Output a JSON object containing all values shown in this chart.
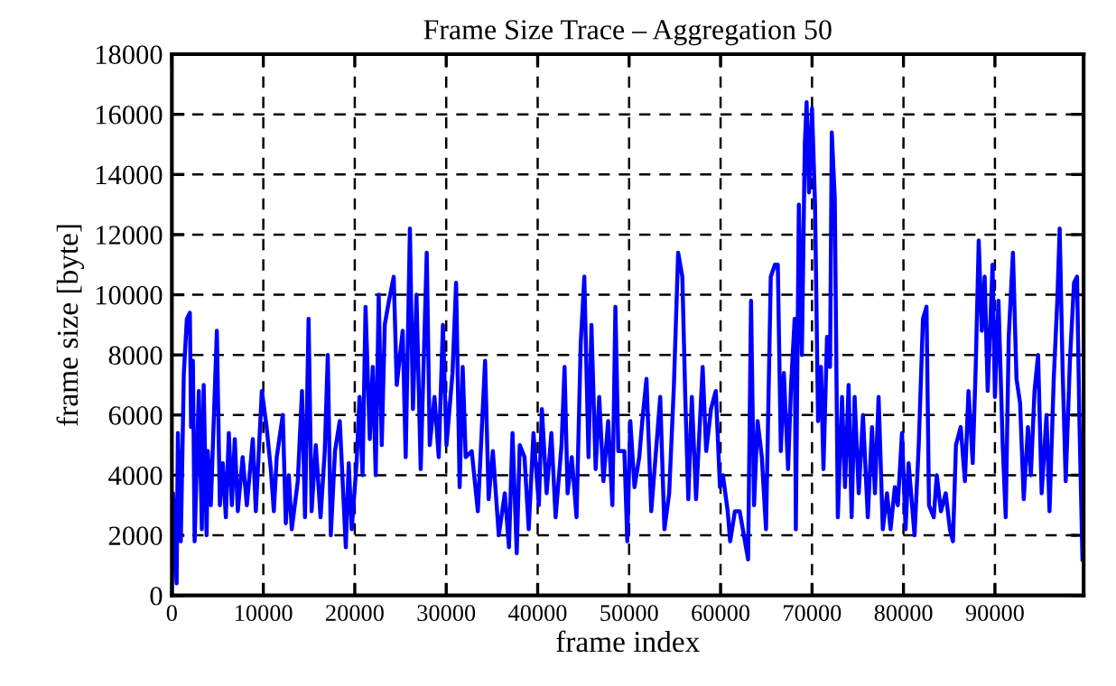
{
  "chart_data": {
    "type": "line",
    "title": "Frame Size Trace – Aggregation 50",
    "xlabel": "frame index",
    "ylabel": "frame size [byte]",
    "xlim": [
      0,
      99700
    ],
    "ylim": [
      0,
      18000
    ],
    "xticks": [
      0,
      10000,
      20000,
      30000,
      40000,
      50000,
      60000,
      70000,
      80000,
      90000
    ],
    "yticks": [
      0,
      2000,
      4000,
      6000,
      8000,
      10000,
      12000,
      14000,
      16000,
      18000
    ],
    "grid": true,
    "legend": false,
    "line_style": "solid",
    "marker": "none",
    "series": [
      {
        "color": "#0000ff",
        "x": [
          0,
          130,
          520,
          660,
          980,
          1310,
          1640,
          1970,
          2100,
          2300,
          2490,
          2950,
          3280,
          3480,
          3800,
          3930,
          4260,
          4920,
          5250,
          5570,
          5900,
          6230,
          6560,
          6880,
          7210,
          7740,
          8200,
          8850,
          9180,
          9840,
          10360,
          10820,
          11150,
          11470,
          12130,
          12460,
          12790,
          13110,
          13770,
          14230,
          14560,
          14950,
          15280,
          15740,
          16260,
          16720,
          17050,
          17380,
          17840,
          18360,
          19020,
          19340,
          19670,
          20200,
          20520,
          20850,
          21180,
          21640,
          21970,
          22290,
          22620,
          22950,
          23280,
          23740,
          24260,
          24590,
          25240,
          25570,
          26030,
          26360,
          26750,
          27210,
          27870,
          28200,
          28720,
          29180,
          29640,
          30030,
          30690,
          31080,
          31470,
          31800,
          32130,
          32790,
          33460,
          34250,
          34640,
          35100,
          35750,
          36410,
          36860,
          37250,
          37710,
          38040,
          38560,
          39020,
          39540,
          40130,
          40460,
          40980,
          41500,
          41960,
          42610,
          42940,
          43270,
          43730,
          44250,
          44710,
          45100,
          45560,
          45880,
          46340,
          46730,
          47190,
          47710,
          48170,
          48500,
          48820,
          49480,
          49800,
          50130,
          50590,
          51110,
          51440,
          51900,
          52420,
          52940,
          53400,
          53860,
          54380,
          54900,
          55360,
          55820,
          56140,
          56470,
          56860,
          57320,
          58040,
          58430,
          58950,
          59480,
          59930,
          60260,
          60780,
          61050,
          61570,
          62090,
          62550,
          63010,
          63330,
          63660,
          64050,
          64510,
          64970,
          65490,
          65950,
          66260,
          66590,
          66920,
          67380,
          67710,
          68100,
          68230,
          68560,
          68890,
          69210,
          69410,
          69670,
          70000,
          70330,
          70660,
          70980,
          71250,
          71640,
          71970,
          72160,
          72490,
          72820,
          73280,
          73610,
          74000,
          74330,
          74660,
          75110,
          75570,
          76100,
          76560,
          76880,
          77280,
          77740,
          78200,
          78590,
          79050,
          79380,
          79840,
          80230,
          80560,
          81210,
          81670,
          82130,
          82520,
          82790,
          83310,
          83640,
          84100,
          84620,
          85080,
          85410,
          85740,
          86260,
          86720,
          87110,
          87570,
          87900,
          88230,
          88560,
          88880,
          89210,
          89740,
          90000,
          90390,
          90850,
          91180,
          91510,
          91970,
          92360,
          92750,
          93150,
          93610,
          93930,
          94330,
          94720,
          95110,
          95640,
          95970,
          96430,
          96820,
          97080,
          97410,
          97740,
          98200,
          98650,
          98980,
          99240,
          99570
        ],
        "values": [
          0,
          3400,
          400,
          5400,
          1800,
          7400,
          9200,
          9400,
          5600,
          7800,
          1800,
          6800,
          2200,
          7000,
          2000,
          4800,
          3000,
          8800,
          3000,
          4400,
          2600,
          5400,
          3000,
          5200,
          2800,
          4600,
          3000,
          5200,
          2800,
          6800,
          5600,
          4200,
          2800,
          4600,
          6000,
          2400,
          4000,
          2200,
          3800,
          6800,
          2600,
          9200,
          2800,
          5000,
          2600,
          4800,
          8000,
          2000,
          4800,
          5800,
          1600,
          4400,
          2200,
          4400,
          6600,
          4000,
          9600,
          5200,
          7600,
          4000,
          10000,
          5000,
          9000,
          9800,
          10600,
          7000,
          8800,
          4600,
          12200,
          6200,
          10000,
          4200,
          11400,
          5000,
          6600,
          4600,
          9000,
          5000,
          7400,
          10400,
          3600,
          7600,
          4600,
          4800,
          2800,
          7800,
          3200,
          4800,
          2000,
          3400,
          1600,
          5400,
          1400,
          5000,
          4600,
          2200,
          5400,
          3000,
          6200,
          3400,
          5400,
          2600,
          5000,
          7600,
          3400,
          4600,
          2600,
          8400,
          10600,
          4600,
          9000,
          4200,
          6600,
          3800,
          5800,
          3000,
          9600,
          4800,
          4800,
          1800,
          5800,
          3600,
          4600,
          5800,
          7200,
          2800,
          4800,
          6600,
          2200,
          3400,
          7000,
          11400,
          10600,
          6600,
          3200,
          6600,
          3200,
          7600,
          4800,
          6200,
          6800,
          3600,
          4000,
          2800,
          1800,
          2800,
          2800,
          2000,
          1200,
          9800,
          3000,
          5800,
          4600,
          2200,
          10600,
          11000,
          11000,
          4800,
          7400,
          4200,
          7000,
          9200,
          2200,
          13000,
          8000,
          15000,
          16400,
          13400,
          16200,
          13000,
          5800,
          7600,
          4200,
          8600,
          7600,
          15400,
          13200,
          2600,
          6600,
          3600,
          7000,
          2600,
          6600,
          3400,
          6000,
          2600,
          5600,
          3400,
          6600,
          2200,
          3400,
          2200,
          3600,
          3000,
          5400,
          2200,
          4400,
          2000,
          5000,
          9200,
          9600,
          3000,
          2600,
          4000,
          2800,
          3400,
          2200,
          1800,
          5000,
          5600,
          3800,
          6800,
          4400,
          7600,
          11800,
          8800,
          10600,
          6800,
          11000,
          6600,
          9800,
          5000,
          2600,
          8600,
          11400,
          7200,
          6400,
          3200,
          5600,
          4000,
          6800,
          8000,
          3400,
          6000,
          2800,
          7200,
          9800,
          12200,
          7400,
          3800,
          7800,
          10400,
          10600,
          5800,
          1200
        ]
      }
    ]
  }
}
